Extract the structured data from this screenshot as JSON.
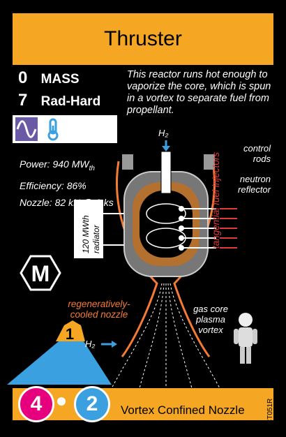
{
  "card": {
    "title": "Thruster",
    "stats": [
      {
        "value": "0",
        "label": "MASS"
      },
      {
        "value": "7",
        "label": "Rad-Hard"
      }
    ],
    "flavor": "This reactor runs hot enough to vaporize the core, which is spun in a vortex to separate fuel from propellant.",
    "specs": {
      "power": "Power: 940 MW",
      "power_sub": "th",
      "efficiency": "Efficiency: 86%",
      "nozzle": "Nozzle: 82 kN @ 2 ks"
    },
    "diagram_labels": {
      "h2_top": "H₂",
      "h2_side": "H₂",
      "control_rods": "control rods",
      "neutron_reflector": "neutron reflector",
      "tangential_injectors": "tangential fuel injectors",
      "radiator": "120 MWth radiator",
      "regen_nozzle": "regeneratively-cooled nozzle",
      "gas_core": "gas core plasma vortex"
    },
    "badge_m": "M",
    "support_number": "1",
    "cost_left": "4",
    "cost_right": "2",
    "name": "Vortex Confined Nozzle",
    "code": "CT051R",
    "icons": [
      "sine-wave-icon",
      "thermometer-icon"
    ],
    "colors": {
      "accent": "#f5a623",
      "orange_text": "#f47b35",
      "blue": "#3aa0e0",
      "magenta": "#e6007e"
    }
  }
}
